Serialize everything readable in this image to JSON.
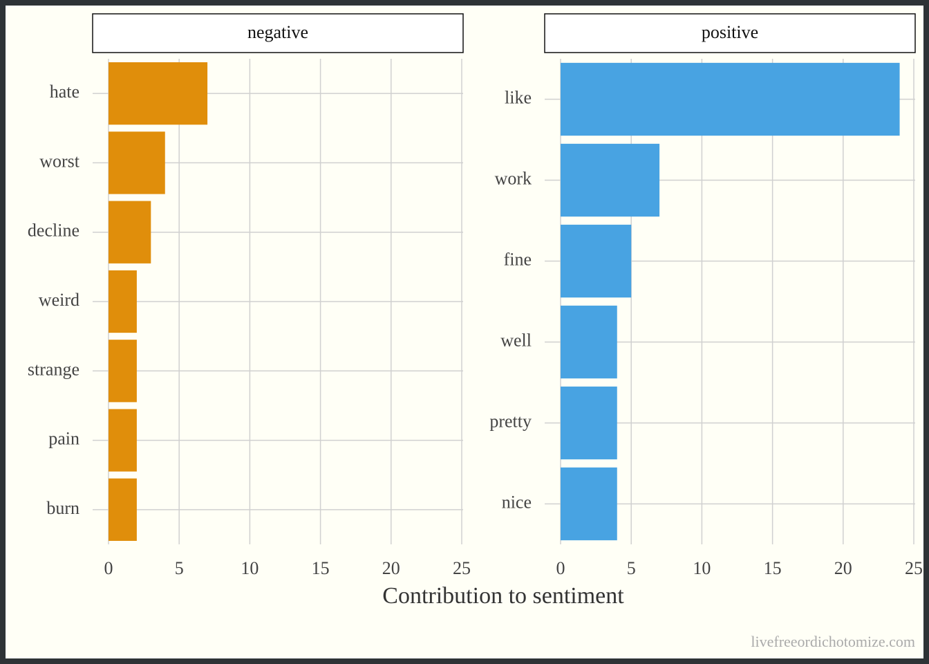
{
  "chart_data": [
    {
      "type": "bar",
      "orientation": "horizontal",
      "title": "negative",
      "categories": [
        "hate",
        "worst",
        "decline",
        "weird",
        "strange",
        "pain",
        "burn"
      ],
      "values": [
        7,
        4,
        3,
        2,
        2,
        2,
        2
      ],
      "color": "#e08e0b",
      "xlim": [
        0,
        25
      ],
      "xticks": [
        0,
        5,
        10,
        15,
        20,
        25
      ],
      "grid": true
    },
    {
      "type": "bar",
      "orientation": "horizontal",
      "title": "positive",
      "categories": [
        "like",
        "work",
        "fine",
        "well",
        "pretty",
        "nice"
      ],
      "values": [
        24,
        7,
        5,
        4,
        4,
        4
      ],
      "color": "#48a3e2",
      "xlim": [
        0,
        25
      ],
      "xticks": [
        0,
        5,
        10,
        15,
        20,
        25
      ],
      "grid": true
    }
  ],
  "xlabel": "Contribution to sentiment",
  "caption": "livefreeordichotomize.com"
}
